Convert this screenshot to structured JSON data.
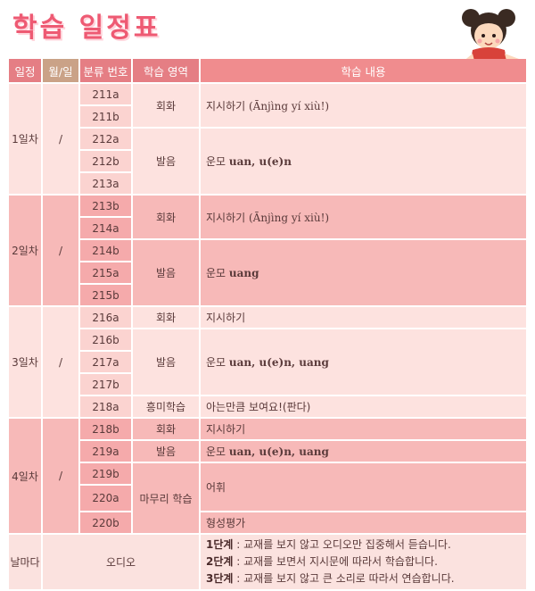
{
  "title": "학습 일정표",
  "headers": {
    "schedule": "일정",
    "date": "월/일",
    "code": "분류 번호",
    "area": "학습 영역",
    "content": "학습 내용"
  },
  "days": [
    {
      "label": "1일차",
      "date": "/",
      "codes": [
        "211a",
        "211b",
        "212a",
        "212b",
        "213a"
      ],
      "areas": [
        {
          "name": "회화",
          "content_plain": "지시하기 ",
          "content_extra": "(Ānjìng  yí  xiù!)"
        },
        {
          "name": "발음",
          "content_plain": "운모 ",
          "content_extra": "uan, u(e)n"
        }
      ]
    },
    {
      "label": "2일차",
      "date": "/",
      "codes": [
        "213b",
        "214a",
        "214b",
        "215a",
        "215b"
      ],
      "areas": [
        {
          "name": "회화",
          "content_plain": "지시하기 ",
          "content_extra": "(Ānjìng  yí  xiù!)"
        },
        {
          "name": "발음",
          "content_plain": "운모 ",
          "content_extra": "uang"
        }
      ]
    },
    {
      "label": "3일차",
      "date": "/",
      "codes": [
        "216a",
        "216b",
        "217a",
        "217b",
        "218a"
      ],
      "areas": [
        {
          "name": "회화",
          "content_plain": "지시하기",
          "content_extra": ""
        },
        {
          "name": "발음",
          "content_plain": "운모 ",
          "content_extra": "uan, u(e)n, uang"
        },
        {
          "name": "흥미학습",
          "content_plain": "아는만큼 보여요!(판다)",
          "content_extra": ""
        }
      ]
    },
    {
      "label": "4일차",
      "date": "/",
      "codes": [
        "218b",
        "219a",
        "219b",
        "220a",
        "220b"
      ],
      "areas": [
        {
          "name": "회화",
          "content_plain": "지시하기",
          "content_extra": ""
        },
        {
          "name": "발음",
          "content_plain": "운모 ",
          "content_extra": "uan, u(e)n, uang"
        },
        {
          "name": "마무리 학습",
          "content_plain": "어휘",
          "content_extra": ""
        },
        {
          "name": "",
          "content_plain": "형성평가",
          "content_extra": ""
        }
      ]
    }
  ],
  "daily": {
    "label": "날마다",
    "area": "오디오",
    "steps": [
      {
        "step": "1단계",
        "text": " : 교재를 보지 않고 오디오만 집중해서 듣습니다."
      },
      {
        "step": "2단계",
        "text": " : 교재를 보면서 지시문에 따라서 학습합니다."
      },
      {
        "step": "3단계",
        "text": " : 교재를 보지 않고 큰 소리로 따라서 연습합니다."
      }
    ]
  },
  "colors": {
    "title": "#ee5a73",
    "header_pink": "#e57e84",
    "header_tan": "#caa287",
    "row_light": "#fde2df",
    "row_dark": "#f7b9b8"
  },
  "icons": [
    "girl-mascot-icon"
  ]
}
